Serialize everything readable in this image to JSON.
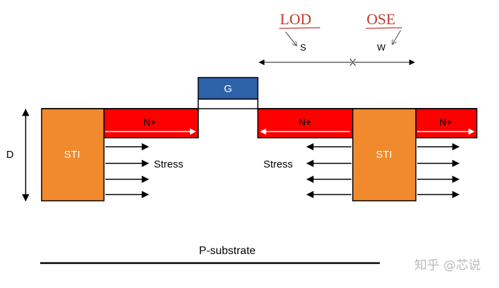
{
  "labels": {
    "gate": "G",
    "n_plus_left": "N+",
    "n_plus_mid": "N+",
    "n_plus_right": "N+",
    "sti_left": "STI",
    "sti_right": "STI",
    "stress_left": "Stress",
    "stress_right": "Stress",
    "depth": "D",
    "spacing": "S",
    "width": "W",
    "substrate": "P-substrate"
  },
  "annotations": {
    "lod": "LOD",
    "ose": "OSE"
  },
  "watermark": "知乎 @芯说",
  "colors": {
    "sti_fill": "#F08A2C",
    "n_plus_fill": "#FF0000",
    "gate_fill": "#2E62A8",
    "annotation": "#C0392B",
    "line": "#000000"
  }
}
